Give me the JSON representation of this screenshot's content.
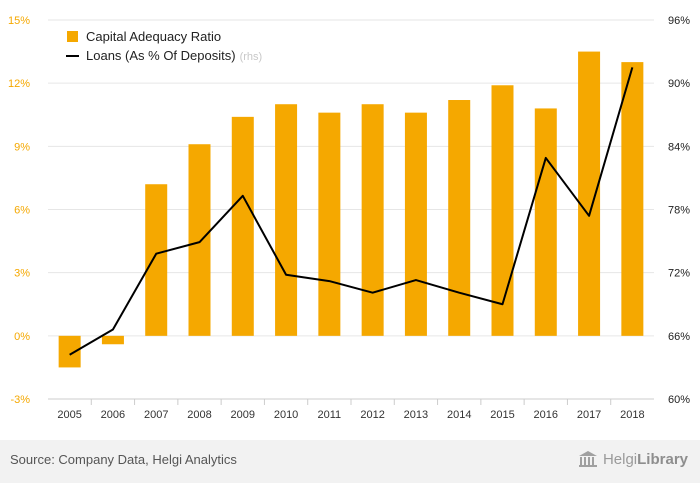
{
  "chart_data": {
    "type": "bar+line",
    "categories": [
      "2005",
      "2006",
      "2007",
      "2008",
      "2009",
      "2010",
      "2011",
      "2012",
      "2013",
      "2014",
      "2015",
      "2016",
      "2017",
      "2018"
    ],
    "series": [
      {
        "name": "Capital Adequacy Ratio",
        "type": "bar",
        "axis": "left",
        "color": "#f5a800",
        "values": [
          -1.5,
          -0.4,
          7.2,
          9.1,
          10.4,
          11.0,
          10.6,
          11.0,
          10.6,
          11.2,
          11.9,
          10.8,
          13.5,
          13.0
        ]
      },
      {
        "name": "Loans (As % Of Deposits)",
        "name_suffix": "(rhs)",
        "type": "line",
        "axis": "right",
        "color": "#000000",
        "values": [
          64.2,
          66.6,
          73.8,
          74.9,
          79.3,
          71.8,
          71.2,
          70.1,
          71.3,
          70.1,
          69.0,
          82.9,
          77.4,
          91.5
        ]
      }
    ],
    "left_axis": {
      "min": -3,
      "max": 15,
      "ticks": [
        -3,
        0,
        3,
        6,
        9,
        12,
        15
      ],
      "tick_labels": [
        "-3%",
        "0%",
        "3%",
        "6%",
        "9%",
        "12%",
        "15%"
      ]
    },
    "right_axis": {
      "min": 60,
      "max": 96,
      "ticks": [
        60,
        66,
        72,
        78,
        84,
        90,
        96
      ],
      "tick_labels": [
        "60%",
        "66%",
        "72%",
        "78%",
        "84%",
        "90%",
        "96%"
      ]
    },
    "grid": true,
    "legend": "top-left"
  },
  "footer": {
    "source": "Source: Company Data, Helgi Analytics",
    "brand_regular": "Helgi",
    "brand_bold": "Library"
  },
  "brand_icon": "library-building-icon"
}
